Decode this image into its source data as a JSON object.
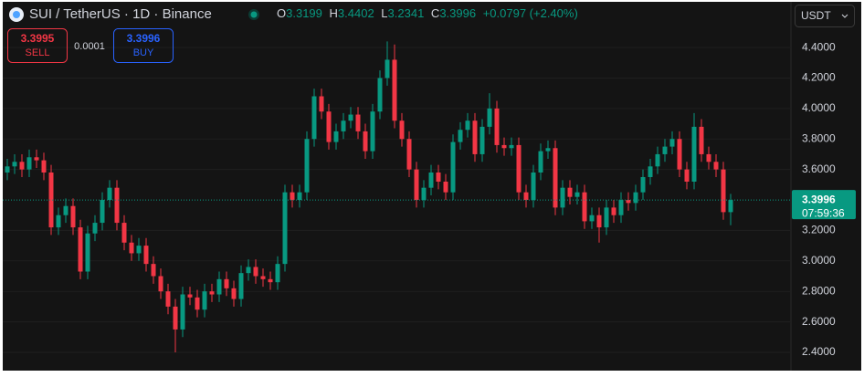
{
  "header": {
    "symbol": "SUI / TetherUS · 1D · Binance",
    "ohlc_labels": [
      "O",
      "H",
      "L",
      "C"
    ],
    "change": "+0.0797 (+2.40%)"
  },
  "trade": {
    "sell_price": 3.3995,
    "sell_label": "SELL",
    "spread": 0.0001,
    "buy_price": 3.3996,
    "buy_label": "BUY"
  },
  "currency": "USDT",
  "chart_data": {
    "type": "candlestick",
    "open": [
      3.58,
      3.62,
      3.65,
      3.6,
      3.68,
      3.66,
      3.58,
      3.22,
      3.3,
      3.36,
      3.22,
      2.93,
      3.18,
      3.25,
      3.4,
      3.48,
      3.25,
      3.12,
      3.05,
      3.1,
      2.98,
      2.9,
      2.8,
      2.7,
      2.55,
      2.78,
      2.76,
      2.68,
      2.8,
      2.78,
      2.88,
      2.82,
      2.75,
      2.92,
      2.96,
      2.9,
      2.88,
      2.86,
      2.98,
      3.45,
      3.4,
      3.45,
      3.8,
      4.08,
      3.98,
      3.78,
      3.85,
      3.92,
      3.96,
      3.85,
      3.72,
      3.98,
      4.2,
      4.32,
      3.92,
      3.8,
      3.6,
      3.4,
      3.48,
      3.58,
      3.52,
      3.45,
      3.78,
      3.86,
      3.92,
      3.7,
      3.88,
      4.0,
      3.76,
      3.74,
      3.76,
      3.45,
      3.4,
      3.58,
      3.72,
      3.74,
      3.35,
      3.48,
      3.42,
      3.45,
      3.26,
      3.3,
      3.22,
      3.35,
      3.3,
      3.4,
      3.38,
      3.45,
      3.55,
      3.62,
      3.7,
      3.75,
      3.8,
      3.6,
      3.52,
      3.88,
      3.7,
      3.65,
      3.6,
      3.3199
    ],
    "high": [
      3.67,
      3.7,
      3.7,
      3.73,
      3.73,
      3.71,
      3.63,
      3.35,
      3.41,
      3.41,
      3.27,
      3.23,
      3.3,
      3.45,
      3.53,
      3.53,
      3.3,
      3.17,
      3.15,
      3.15,
      3.03,
      2.95,
      2.85,
      2.75,
      2.83,
      2.83,
      2.81,
      2.85,
      2.85,
      2.93,
      2.93,
      2.87,
      2.97,
      3.01,
      3.01,
      2.95,
      2.93,
      3.03,
      3.5,
      3.5,
      3.5,
      3.85,
      4.13,
      4.13,
      4.03,
      3.9,
      3.97,
      4.01,
      4.01,
      3.9,
      4.03,
      4.25,
      4.44,
      4.42,
      3.97,
      3.85,
      3.65,
      3.53,
      3.63,
      3.63,
      3.57,
      3.83,
      3.91,
      3.97,
      3.97,
      3.93,
      4.1,
      4.05,
      3.81,
      3.81,
      3.81,
      3.5,
      3.63,
      3.77,
      3.79,
      3.79,
      3.53,
      3.53,
      3.5,
      3.5,
      3.35,
      3.35,
      3.4,
      3.4,
      3.45,
      3.45,
      3.5,
      3.6,
      3.67,
      3.75,
      3.8,
      3.85,
      3.85,
      3.65,
      3.97,
      3.93,
      3.75,
      3.7,
      3.65,
      3.4402
    ],
    "low": [
      3.53,
      3.57,
      3.55,
      3.55,
      3.61,
      3.53,
      3.17,
      3.17,
      3.25,
      3.17,
      2.88,
      2.88,
      3.13,
      3.2,
      3.35,
      3.2,
      3.07,
      3.0,
      3.0,
      2.93,
      2.85,
      2.75,
      2.65,
      2.4,
      2.5,
      2.71,
      2.63,
      2.63,
      2.73,
      2.73,
      2.77,
      2.7,
      2.7,
      2.87,
      2.85,
      2.83,
      2.81,
      2.81,
      2.93,
      3.35,
      3.35,
      3.4,
      3.75,
      3.93,
      3.73,
      3.73,
      3.8,
      3.87,
      3.8,
      3.67,
      3.67,
      3.93,
      4.15,
      3.87,
      3.75,
      3.55,
      3.35,
      3.35,
      3.43,
      3.47,
      3.4,
      3.4,
      3.73,
      3.81,
      3.65,
      3.65,
      3.83,
      3.71,
      3.69,
      3.69,
      3.4,
      3.35,
      3.35,
      3.53,
      3.67,
      3.3,
      3.3,
      3.37,
      3.37,
      3.21,
      3.21,
      3.12,
      3.17,
      3.25,
      3.25,
      3.33,
      3.33,
      3.4,
      3.5,
      3.57,
      3.65,
      3.7,
      3.55,
      3.47,
      3.47,
      3.65,
      3.6,
      3.55,
      3.27,
      3.2341
    ],
    "close": [
      3.62,
      3.65,
      3.6,
      3.68,
      3.66,
      3.58,
      3.22,
      3.3,
      3.36,
      3.22,
      2.93,
      3.18,
      3.25,
      3.4,
      3.48,
      3.25,
      3.12,
      3.05,
      3.1,
      2.98,
      2.9,
      2.8,
      2.7,
      2.55,
      2.78,
      2.76,
      2.68,
      2.8,
      2.78,
      2.88,
      2.82,
      2.75,
      2.92,
      2.96,
      2.9,
      2.88,
      2.86,
      2.98,
      3.45,
      3.4,
      3.45,
      3.8,
      4.08,
      3.98,
      3.78,
      3.85,
      3.92,
      3.96,
      3.85,
      3.72,
      3.98,
      4.2,
      4.32,
      3.92,
      3.8,
      3.6,
      3.4,
      3.48,
      3.58,
      3.52,
      3.45,
      3.78,
      3.86,
      3.92,
      3.7,
      3.88,
      4.0,
      3.76,
      3.74,
      3.76,
      3.45,
      3.4,
      3.58,
      3.72,
      3.74,
      3.35,
      3.48,
      3.42,
      3.45,
      3.26,
      3.3,
      3.22,
      3.35,
      3.3,
      3.4,
      3.38,
      3.45,
      3.55,
      3.62,
      3.7,
      3.75,
      3.8,
      3.6,
      3.52,
      3.88,
      3.7,
      3.65,
      3.6,
      3.3199,
      3.3996
    ],
    "ylim": [
      2.28,
      4.7
    ],
    "yticks": [
      {
        "value": 2.4,
        "label": "2.4000"
      },
      {
        "value": 2.6,
        "label": "2.6000"
      },
      {
        "value": 2.8,
        "label": "2.8000"
      },
      {
        "value": 3.0,
        "label": "3.0000"
      },
      {
        "value": 3.2,
        "label": "3.2000"
      },
      {
        "value": 3.6,
        "label": "3.6000"
      },
      {
        "value": 3.8,
        "label": "3.8000"
      },
      {
        "value": 4.0,
        "label": "4.0000"
      },
      {
        "value": 4.2,
        "label": "4.2000"
      },
      {
        "value": 4.4,
        "label": "4.4000"
      }
    ],
    "grid": true,
    "last_price": 3.3996,
    "countdown": "07:59:36",
    "colors": {
      "up": "#089981",
      "down": "#f23645"
    }
  }
}
